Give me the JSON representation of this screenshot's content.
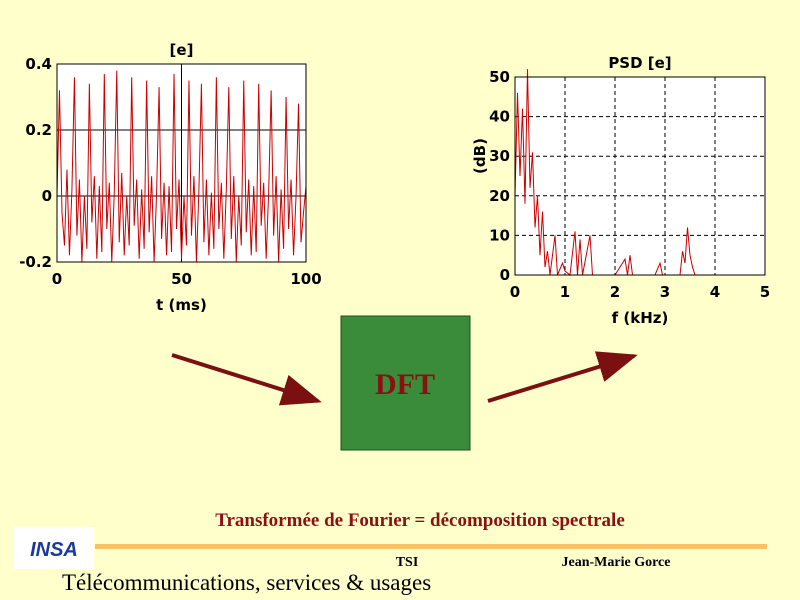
{
  "chart_data": [
    {
      "type": "line",
      "title": "[e]",
      "x_label": "t (ms)",
      "x": [
        0,
        1,
        2,
        3,
        4,
        5,
        6,
        7,
        8,
        9,
        10,
        11,
        12,
        13,
        14,
        15,
        16,
        17,
        18,
        19,
        20,
        21,
        22,
        23,
        24,
        25,
        26,
        27,
        28,
        29,
        30,
        31,
        32,
        33,
        34,
        35,
        36,
        37,
        38,
        39,
        40,
        41,
        42,
        43,
        44,
        45,
        46,
        47,
        48,
        49,
        50,
        51,
        52,
        53,
        54,
        55,
        56,
        57,
        58,
        59,
        60,
        61,
        62,
        63,
        64,
        65,
        66,
        67,
        68,
        69,
        70,
        71,
        72,
        73,
        74,
        75,
        76,
        77,
        78,
        79,
        80,
        81,
        82,
        83,
        84,
        85,
        86,
        87,
        88,
        89,
        90,
        91,
        92,
        93,
        94,
        95,
        96,
        97,
        98,
        99,
        100
      ],
      "series": [
        {
          "color": "#cc0000",
          "values": [
            0.0,
            0.32,
            -0.05,
            -0.15,
            0.08,
            -0.18,
            0.02,
            0.36,
            -0.12,
            0.05,
            -0.2,
            0.0,
            -0.16,
            0.34,
            -0.08,
            0.06,
            -0.19,
            0.03,
            -0.17,
            0.37,
            -0.1,
            0.04,
            -0.2,
            0.01,
            0.38,
            -0.14,
            0.07,
            -0.18,
            0.0,
            -0.15,
            0.36,
            -0.09,
            0.05,
            -0.19,
            0.02,
            -0.16,
            0.35,
            -0.11,
            0.06,
            -0.2,
            0.01,
            0.33,
            -0.13,
            0.04,
            -0.18,
            0.03,
            -0.17,
            0.37,
            -0.1,
            0.05,
            -0.19,
            0.0,
            -0.15,
            0.35,
            -0.12,
            0.06,
            -0.2,
            0.02,
            0.34,
            -0.14,
            0.05,
            -0.18,
            0.01,
            -0.16,
            0.36,
            -0.1,
            0.04,
            -0.19,
            0.02,
            0.33,
            -0.13,
            0.06,
            -0.2,
            0.0,
            -0.15,
            0.35,
            -0.11,
            0.05,
            -0.18,
            0.03,
            -0.17,
            0.34,
            -0.09,
            0.04,
            -0.19,
            0.01,
            0.32,
            -0.12,
            0.06,
            -0.2,
            0.02,
            -0.16,
            0.3,
            -0.1,
            0.05,
            -0.18,
            0.0,
            0.28,
            -0.14,
            -0.05,
            0.03
          ]
        }
      ],
      "xlim": [
        0,
        100
      ],
      "xticks": [
        0,
        50,
        100
      ],
      "ylim": [
        -0.2,
        0.4
      ],
      "yticks": [
        -0.2,
        0,
        0.2,
        0.4
      ],
      "grid": true,
      "grid_style": "solid"
    },
    {
      "type": "line",
      "title": "PSD [e]",
      "x_label": "f (kHz)",
      "y_label": "(dB)",
      "x": [
        0,
        0.05,
        0.1,
        0.15,
        0.2,
        0.25,
        0.3,
        0.35,
        0.4,
        0.45,
        0.5,
        0.55,
        0.6,
        0.65,
        0.7,
        0.8,
        0.85,
        0.95,
        1.0,
        1.1,
        1.2,
        1.25,
        1.3,
        1.35,
        1.5,
        1.55,
        2.0,
        2.2,
        2.25,
        2.3,
        2.35,
        2.8,
        2.9,
        2.95,
        3.3,
        3.35,
        3.4,
        3.45,
        3.5,
        3.55,
        3.6,
        5
      ],
      "series": [
        {
          "color": "#cc0000",
          "values": [
            20,
            46,
            25,
            42,
            18,
            52,
            22,
            31,
            12,
            20,
            5,
            16,
            2,
            6,
            0,
            10,
            0,
            3,
            1,
            0,
            11,
            0,
            9,
            0,
            10,
            0,
            0,
            4,
            0,
            5,
            0,
            0,
            3,
            0,
            0,
            6,
            3,
            12,
            5,
            2,
            0,
            0
          ]
        }
      ],
      "xlim": [
        0,
        5
      ],
      "xticks": [
        0,
        1,
        2,
        3,
        4,
        5
      ],
      "ylim": [
        0,
        50
      ],
      "yticks": [
        0,
        10,
        20,
        30,
        40,
        50
      ],
      "grid": true,
      "grid_style": "dashed"
    }
  ],
  "slide": {
    "box_label": "DFT",
    "caption": "Transformée de Fourier = décomposition spectrale",
    "logo": "INSA",
    "footer_center": "TSI",
    "footer_author": "Jean-Marie Gorce",
    "footer_title": "Télécommunications, services & usages"
  }
}
